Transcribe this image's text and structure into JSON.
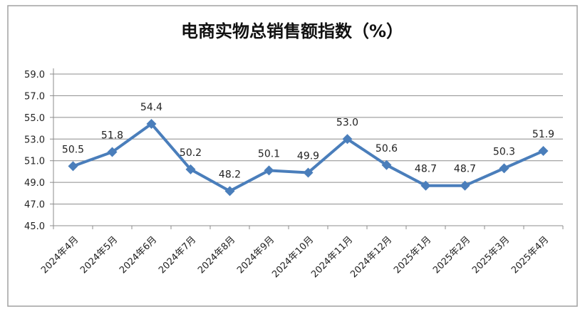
{
  "chart_data": {
    "type": "line",
    "title": "电商实物总销售额指数（%）",
    "categories": [
      "2024年4月",
      "2024年5月",
      "2024年6月",
      "2024年7月",
      "2024年8月",
      "2024年9月",
      "2024年10月",
      "2024年11月",
      "2024年12月",
      "2025年1月",
      "2025年2月",
      "2025年3月",
      "2025年4月"
    ],
    "values": [
      50.5,
      51.8,
      54.4,
      50.2,
      48.2,
      50.1,
      49.9,
      53.0,
      50.6,
      48.7,
      48.7,
      50.3,
      51.9
    ],
    "data_labels": [
      "50.5",
      "51.8",
      "54.4",
      "50.2",
      "48.2",
      "50.1",
      "49.9",
      "53.0",
      "50.6",
      "48.7",
      "48.7",
      "50.3",
      "51.9"
    ],
    "yticks": [
      "45.0",
      "47.0",
      "49.0",
      "51.0",
      "53.0",
      "55.0",
      "57.0",
      "59.0"
    ],
    "ylim": [
      45,
      59
    ],
    "grid": true,
    "legend": "none",
    "marker": "diamond",
    "line_color": "#4a7ebb"
  }
}
